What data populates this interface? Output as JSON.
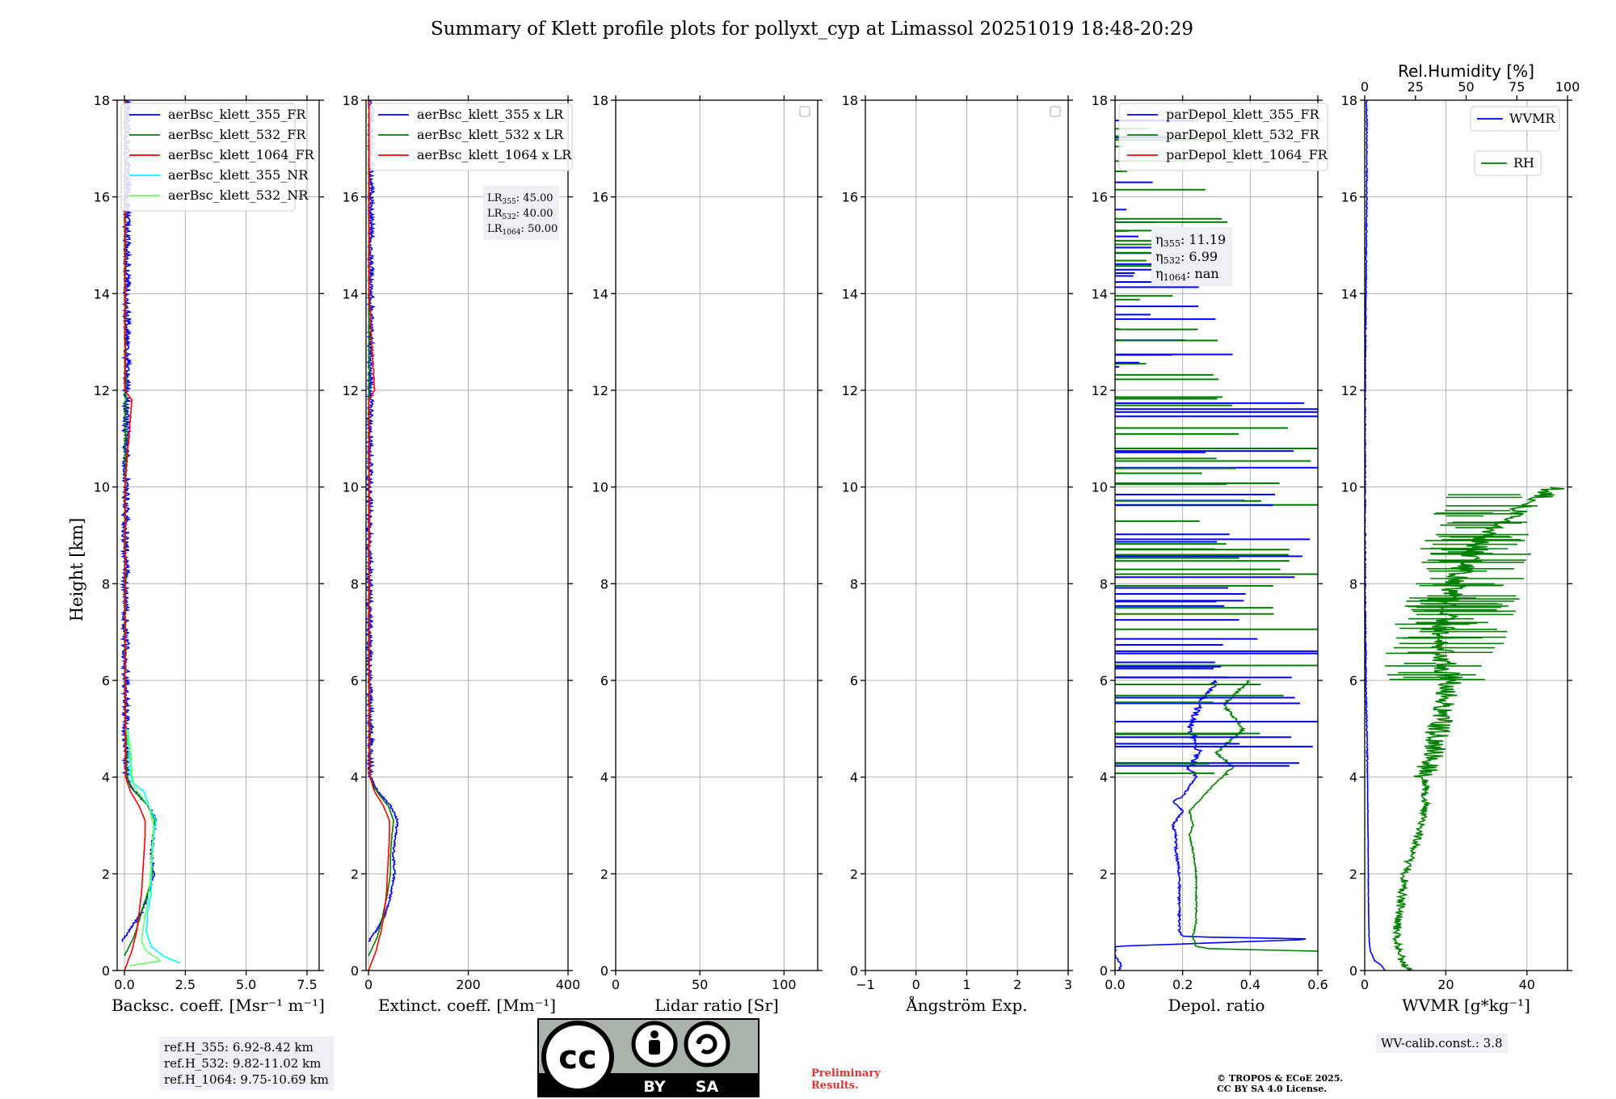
{
  "title": "Summary of Klett profile plots for pollyxt_cyp at Limassol 20251019 18:48-20:29",
  "ylabel": "Height [km]",
  "colors": {
    "c355": "#0000ff",
    "c532": "#008000",
    "c1064": "#ff0000",
    "nr355": "#00ffff",
    "nr532": "#66ff66",
    "grid": "#b0b0b0"
  },
  "chart_data": [
    {
      "type": "line",
      "id": "bsc",
      "xlabel": "Backsc. coeff. [Msr⁻¹ m⁻¹]",
      "xlim": [
        -0.3,
        8.0
      ],
      "ylim": [
        0,
        18
      ],
      "xticks": [
        0,
        2.5,
        5.0,
        7.5
      ],
      "xticklabels": [
        "0.0",
        "2.5",
        "5.0",
        "7.5"
      ],
      "yticks": [
        0,
        2,
        4,
        6,
        8,
        10,
        12,
        14,
        16,
        18
      ],
      "legend": [
        {
          "label": "aerBsc_klett_355_FR",
          "color": "#0000ff"
        },
        {
          "label": "aerBsc_klett_532_FR",
          "color": "#008000"
        },
        {
          "label": "aerBsc_klett_1064_FR",
          "color": "#ff0000"
        },
        {
          "label": "aerBsc_klett_355_NR",
          "color": "#00ffff"
        },
        {
          "label": "aerBsc_klett_532_NR",
          "color": "#66ff66"
        }
      ],
      "series": [
        {
          "name": "aerBsc_klett_355_FR",
          "color": "#0000ff",
          "y": [
            0.6,
            0.9,
            1.2,
            1.6,
            2.0,
            2.4,
            2.8,
            3.1,
            3.4,
            3.6,
            3.8,
            4.0,
            4.5,
            5.0,
            6.0,
            8.0,
            10.0,
            12.0,
            14.0,
            16.0,
            18.0
          ],
          "x": [
            -0.1,
            0.3,
            0.7,
            1.0,
            1.2,
            1.1,
            1.2,
            1.3,
            1.0,
            0.6,
            0.25,
            0.1,
            0.1,
            0.05,
            0.05,
            0.05,
            0.05,
            0.1,
            0.1,
            0.1,
            0.1
          ],
          "noise": 0.15
        },
        {
          "name": "aerBsc_klett_532_FR",
          "color": "#008000",
          "y": [
            0.3,
            0.7,
            1.2,
            1.6,
            2.0,
            2.4,
            2.8,
            3.1,
            3.4,
            3.6,
            3.8,
            4.0,
            5.0,
            6.0,
            8.0,
            10.0,
            12.0,
            14.0,
            16.0,
            18.0
          ],
          "x": [
            0.0,
            0.4,
            0.7,
            0.95,
            1.15,
            1.1,
            1.2,
            1.25,
            1.0,
            0.6,
            0.25,
            0.1,
            0.05,
            0.03,
            0.03,
            0.03,
            0.05,
            0.03,
            0.03,
            0.03
          ],
          "noise": 0.04
        },
        {
          "name": "aerBsc_klett_1064_FR",
          "color": "#ff0000",
          "y": [
            0.0,
            0.4,
            0.8,
            1.2,
            1.6,
            2.0,
            2.4,
            2.8,
            3.1,
            3.4,
            3.7,
            4.0,
            6.0,
            10.0,
            11.8,
            12.0,
            14.0,
            16.0,
            18.0
          ],
          "x": [
            0.0,
            0.3,
            0.5,
            0.6,
            0.7,
            0.75,
            0.8,
            0.85,
            0.85,
            0.6,
            0.25,
            0.05,
            0.02,
            0.02,
            0.3,
            0.02,
            0.02,
            0.02,
            0.02
          ],
          "noise": 0.02
        },
        {
          "name": "aerBsc_klett_355_NR",
          "color": "#00ffff",
          "y": [
            0.15,
            0.3,
            0.5,
            0.8,
            1.2,
            1.6,
            2.0,
            2.4,
            2.8,
            3.1,
            3.4,
            3.7,
            3.9,
            4.2,
            4.6,
            5.0
          ],
          "x": [
            2.3,
            1.6,
            1.1,
            0.9,
            0.95,
            1.1,
            1.1,
            1.15,
            1.2,
            1.3,
            1.0,
            0.8,
            0.3,
            0.2,
            0.2,
            0.1
          ],
          "noise": 0.05
        },
        {
          "name": "aerBsc_klett_532_NR",
          "color": "#66ff66",
          "y": [
            0.1,
            0.2,
            0.4,
            0.6,
            1.0,
            1.4,
            1.8,
            2.2,
            2.6,
            3.0,
            3.4,
            3.8,
            4.1,
            4.5,
            5.0
          ],
          "x": [
            0.2,
            1.5,
            0.9,
            0.7,
            0.8,
            0.95,
            1.05,
            1.1,
            1.15,
            1.2,
            1.0,
            0.4,
            0.3,
            0.25,
            0.1
          ],
          "noise": 0.04
        }
      ]
    },
    {
      "type": "line",
      "id": "ext",
      "xlabel": "Extinct. coeff. [Mm⁻¹]",
      "xlim": [
        -5,
        400
      ],
      "ylim": [
        0,
        18
      ],
      "xticks": [
        0,
        200,
        400
      ],
      "xticklabels": [
        "0",
        "200",
        "400"
      ],
      "yticks": [
        0,
        2,
        4,
        6,
        8,
        10,
        12,
        14,
        16,
        18
      ],
      "legend": [
        {
          "label": "aerBsc_klett_355 x LR",
          "color": "#0000ff"
        },
        {
          "label": "aerBsc_klett_532 x LR",
          "color": "#008000"
        },
        {
          "label": "aerBsc_klett_1064 x LR",
          "color": "#ff0000"
        }
      ],
      "annotation": [
        {
          "sym": "LR",
          "sub": "355",
          "val": ": 45.00"
        },
        {
          "sym": "LR",
          "sub": "532",
          "val": ": 40.00"
        },
        {
          "sym": "LR",
          "sub": "1064",
          "val": ": 50.00"
        }
      ],
      "series": [
        {
          "name": "aerBsc_klett_355 x LR",
          "color": "#0000ff",
          "y": [
            0.6,
            0.9,
            1.2,
            1.6,
            2.0,
            2.4,
            2.8,
            3.1,
            3.4,
            3.6,
            3.8,
            4.0,
            5.0,
            6.0,
            8.0,
            10.0,
            12.0,
            14.0,
            16.0,
            18.0
          ],
          "x": [
            0,
            20,
            35,
            45,
            52,
            50,
            54,
            58,
            45,
            28,
            12,
            5,
            4,
            2,
            2,
            2,
            4,
            5,
            5,
            5
          ],
          "noise": 6
        },
        {
          "name": "aerBsc_klett_532 x LR",
          "color": "#008000",
          "y": [
            0.3,
            0.7,
            1.2,
            1.6,
            2.0,
            2.4,
            2.8,
            3.1,
            3.4,
            3.6,
            3.8,
            4.0,
            6.0,
            10.0,
            14.0,
            18.0
          ],
          "x": [
            0,
            18,
            30,
            38,
            44,
            44,
            47,
            50,
            40,
            24,
            10,
            4,
            1,
            1,
            1,
            1
          ],
          "noise": 1.5
        },
        {
          "name": "aerBsc_klett_1064 x LR",
          "color": "#ff0000",
          "y": [
            0.0,
            0.4,
            0.8,
            1.2,
            1.6,
            2.0,
            2.4,
            2.8,
            3.1,
            3.4,
            3.7,
            4.0,
            6.0,
            11.8,
            12.0,
            14.0,
            18.0
          ],
          "x": [
            0,
            15,
            25,
            32,
            36,
            38,
            40,
            42,
            42,
            30,
            12,
            3,
            1,
            1,
            12,
            1,
            1
          ],
          "noise": 1
        }
      ]
    },
    {
      "type": "line",
      "id": "lr",
      "xlabel": "Lidar ratio [Sr]",
      "xlim": [
        0,
        120
      ],
      "ylim": [
        0,
        18
      ],
      "xticks": [
        0,
        50,
        100
      ],
      "xticklabels": [
        "0",
        "50",
        "100"
      ],
      "yticks": [
        0,
        2,
        4,
        6,
        8,
        10,
        12,
        14,
        16,
        18
      ],
      "series": []
    },
    {
      "type": "line",
      "id": "ang",
      "xlabel": "Ångström Exp.",
      "xlim": [
        -1,
        3
      ],
      "ylim": [
        0,
        18
      ],
      "xticks": [
        -1,
        0,
        1,
        2,
        3
      ],
      "xticklabels": [
        "−1",
        "0",
        "1",
        "2",
        "3"
      ],
      "yticks": [
        0,
        2,
        4,
        6,
        8,
        10,
        12,
        14,
        16,
        18
      ],
      "series": []
    },
    {
      "type": "line",
      "id": "dep",
      "xlabel": "Depol. ratio",
      "xlim": [
        0,
        0.6
      ],
      "ylim": [
        0,
        18
      ],
      "xticks": [
        0,
        0.2,
        0.4,
        0.6
      ],
      "xticklabels": [
        "0.0",
        "0.2",
        "0.4",
        "0.6"
      ],
      "yticks": [
        0,
        2,
        4,
        6,
        8,
        10,
        12,
        14,
        16,
        18
      ],
      "legend": [
        {
          "label": "parDepol_klett_355_FR",
          "color": "#0000ff"
        },
        {
          "label": "parDepol_klett_532_FR",
          "color": "#008000"
        },
        {
          "label": "parDepol_klett_1064_FR",
          "color": "#ff0000"
        }
      ],
      "annotation": [
        {
          "sym": "η",
          "sub": "355",
          "val": ": 11.19"
        },
        {
          "sym": "η",
          "sub": "532",
          "val": ": 6.99"
        },
        {
          "sym": "η",
          "sub": "1064",
          "val": ": nan"
        }
      ],
      "series": [
        {
          "name": "parDepol_klett_355_FR",
          "color": "#0000ff",
          "y": [
            0.0,
            0.1,
            0.2,
            0.3,
            0.5,
            0.65,
            0.7,
            0.8,
            1.0,
            1.5,
            2.0,
            2.5,
            2.8,
            3.0,
            3.3,
            3.5,
            3.6,
            3.8,
            4.0,
            4.2,
            4.5,
            5.0,
            5.5,
            6.0
          ],
          "x": [
            0.01,
            0.02,
            0.01,
            0.0,
            0.0,
            0.6,
            0.2,
            0.19,
            0.19,
            0.19,
            0.19,
            0.18,
            0.18,
            0.17,
            0.2,
            0.17,
            0.2,
            0.22,
            0.24,
            0.22,
            0.25,
            0.22,
            0.25,
            0.3
          ],
          "noise": 0.01
        },
        {
          "name": "parDepol_klett_532_FR",
          "color": "#008000",
          "y": [
            0.4,
            0.45,
            0.5,
            0.7,
            1.0,
            1.5,
            2.0,
            2.5,
            2.8,
            3.0,
            3.3,
            3.6,
            3.9,
            4.2,
            4.5,
            5.0,
            5.5,
            6.0
          ],
          "x": [
            0.6,
            0.28,
            0.24,
            0.23,
            0.24,
            0.24,
            0.24,
            0.23,
            0.22,
            0.23,
            0.22,
            0.26,
            0.3,
            0.35,
            0.3,
            0.38,
            0.32,
            0.4
          ],
          "noise": 0.006
        }
      ]
    },
    {
      "type": "line",
      "id": "wv",
      "xlabel": "WVMR [g*kg⁻¹]",
      "xlim": [
        0,
        50
      ],
      "ylim": [
        0,
        18
      ],
      "xticks": [
        0,
        20,
        40
      ],
      "xticklabels": [
        "0",
        "20",
        "40"
      ],
      "x2label": "Rel.Humidity [%]",
      "x2lim": [
        0,
        100
      ],
      "x2ticks": [
        0,
        25,
        50,
        75,
        100
      ],
      "x2ticklabels": [
        "0",
        "25",
        "50",
        "75",
        "100"
      ],
      "yticks": [
        0,
        2,
        4,
        6,
        8,
        10,
        12,
        14,
        16,
        18
      ],
      "legend": [
        {
          "label": "WVMR",
          "color": "#0000ff"
        },
        {
          "label": "RH",
          "color": "#008000"
        }
      ],
      "series": [
        {
          "name": "WVMR",
          "color": "#0000ff",
          "y": [
            0.0,
            0.1,
            0.2,
            0.4,
            0.6,
            1.0,
            1.5,
            2.0,
            3.0,
            4.0,
            5.0,
            6.0,
            7.0,
            8.0,
            10.0,
            12.0,
            14.0,
            16.0,
            18.0
          ],
          "x": [
            5.0,
            4.2,
            2.5,
            1.4,
            1.1,
            1.0,
            0.9,
            0.9,
            0.8,
            0.7,
            0.5,
            0.3,
            0.2,
            0.1,
            0.1,
            0.1,
            0.3,
            0.5,
            0.5
          ],
          "noise": 0.15
        },
        {
          "name": "RH",
          "color": "#008000",
          "axis": "x2",
          "y": [
            0.0,
            0.2,
            0.6,
            1.0,
            1.4,
            2.0,
            2.5,
            3.0,
            3.5,
            4.0,
            4.5,
            5.0,
            5.5,
            6.0,
            6.5,
            7.0,
            7.5,
            8.0,
            8.5,
            9.0,
            9.5,
            10.0
          ],
          "x": [
            22,
            18,
            16,
            16,
            18,
            20,
            24,
            28,
            30,
            30,
            34,
            36,
            40,
            42,
            38,
            38,
            40,
            45,
            50,
            60,
            75,
            95
          ],
          "noise": 6
        }
      ]
    }
  ],
  "notes": {
    "ref": [
      "ref.H_355: 6.92-8.42 km",
      "ref.H_532: 9.82-11.02 km",
      "ref.H_1064: 9.75-10.69 km"
    ],
    "wv_calib": "WV-calib.const.: 3.8",
    "prelim": [
      "Preliminary",
      "Results."
    ],
    "copyright": [
      "© TROPOS & ECoE 2025.",
      "CC BY SA 4.0 License."
    ],
    "license_badge": {
      "by": "BY",
      "sa": "SA",
      "cc": "cc"
    }
  }
}
